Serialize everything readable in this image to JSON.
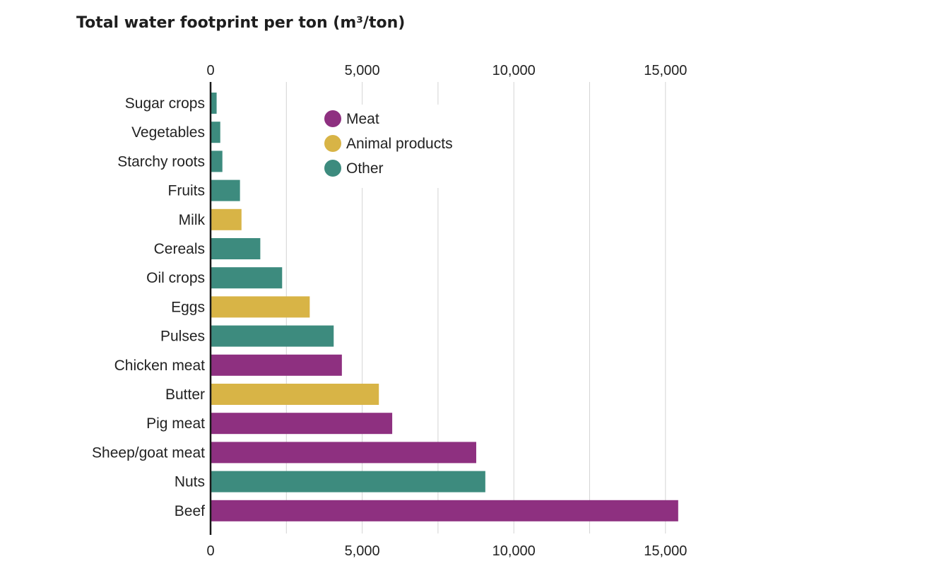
{
  "title": "Total water footprint per ton (m³/ton)",
  "colors": {
    "Meat": "#8e3080",
    "Animal products": "#d8b446",
    "Other": "#3d8b7e"
  },
  "legend": [
    {
      "label": "Meat",
      "group": "Meat"
    },
    {
      "label": "Animal products",
      "group": "Animal products"
    },
    {
      "label": "Other",
      "group": "Other"
    }
  ],
  "chart_data": {
    "type": "bar",
    "orientation": "horizontal",
    "title": "Total water footprint per ton (m³/ton)",
    "xlim": [
      0,
      15500
    ],
    "ticks": [
      0,
      5000,
      10000,
      15000
    ],
    "tick_labels": [
      "0",
      "5,000",
      "10,000",
      "15,000"
    ],
    "grid_values": [
      2500,
      5000,
      7500,
      10000,
      12500,
      15000
    ],
    "axis_labels_top_and_bottom": true,
    "legend_position": "top-center",
    "categories": [
      "Sugar crops",
      "Vegetables",
      "Starchy roots",
      "Fruits",
      "Milk",
      "Cereals",
      "Oil crops",
      "Eggs",
      "Pulses",
      "Chicken meat",
      "Butter",
      "Pig meat",
      "Sheep/goat meat",
      "Nuts",
      "Beef"
    ],
    "values": [
      200,
      320,
      390,
      970,
      1020,
      1640,
      2360,
      3270,
      4060,
      4330,
      5550,
      5990,
      8760,
      9060,
      15420
    ],
    "groups": [
      "Other",
      "Other",
      "Other",
      "Other",
      "Animal products",
      "Other",
      "Other",
      "Animal products",
      "Other",
      "Meat",
      "Animal products",
      "Meat",
      "Meat",
      "Other",
      "Meat"
    ]
  }
}
